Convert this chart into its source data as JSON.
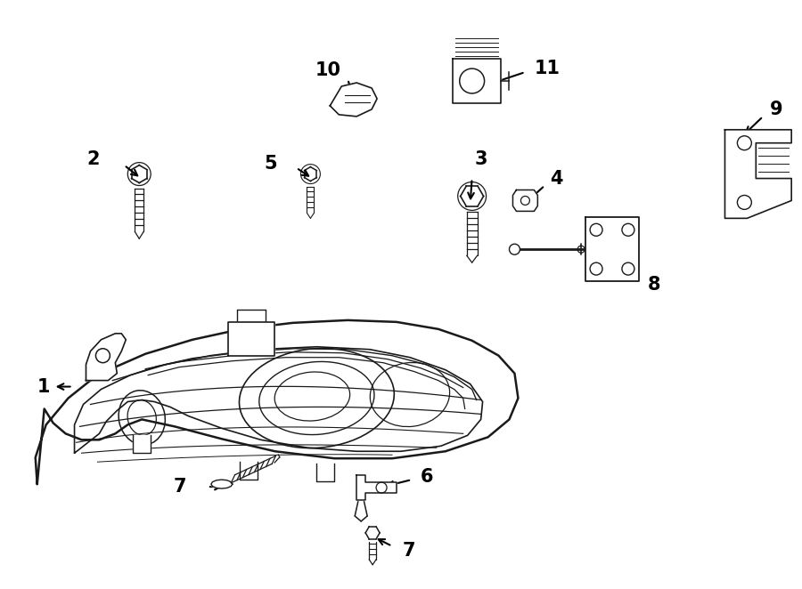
{
  "bg_color": "#ffffff",
  "line_color": "#1a1a1a",
  "fig_width": 9.0,
  "fig_height": 6.62,
  "font_size": 15
}
